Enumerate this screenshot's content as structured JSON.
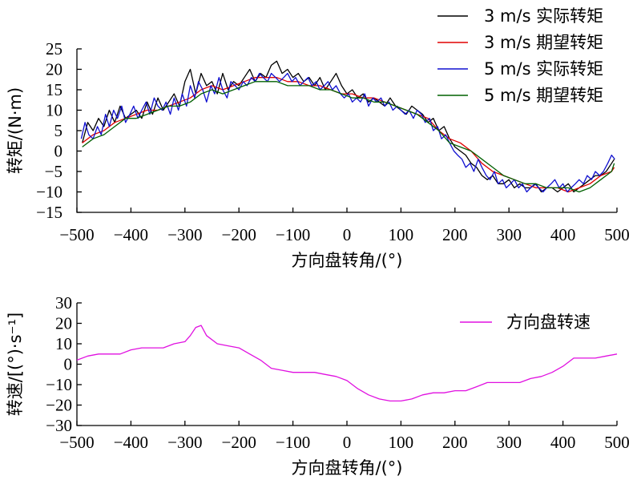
{
  "chart_data": [
    {
      "type": "line",
      "xlabel": "方向盘转角/(°)",
      "ylabel": "转矩/(N·m)",
      "xlim": [
        -500,
        500
      ],
      "ylim": [
        -15,
        25
      ],
      "xticks": [
        -500,
        -400,
        -300,
        -200,
        -100,
        0,
        100,
        200,
        300,
        400,
        500
      ],
      "yticks": [
        -15,
        -10,
        -5,
        0,
        5,
        10,
        15,
        20,
        25
      ],
      "xtick_labels": [
        "−500",
        "−400",
        "−300",
        "−200",
        "−100",
        "0",
        "100",
        "200",
        "300",
        "400",
        "500"
      ],
      "ytick_labels": [
        "−15",
        "−10",
        "−5",
        "0",
        "5",
        "10",
        "15",
        "20",
        "25"
      ],
      "legend": "top-right",
      "series": [
        {
          "name": "3 m/s 实际转矩",
          "color": "#000000",
          "x": [
            -490,
            -480,
            -470,
            -460,
            -450,
            -440,
            -430,
            -420,
            -410,
            -400,
            -390,
            -380,
            -370,
            -360,
            -350,
            -340,
            -330,
            -320,
            -310,
            -300,
            -290,
            -280,
            -270,
            -260,
            -250,
            -240,
            -230,
            -220,
            -210,
            -200,
            -190,
            -180,
            -170,
            -160,
            -150,
            -140,
            -130,
            -120,
            -110,
            -100,
            -90,
            -80,
            -70,
            -60,
            -50,
            -40,
            -30,
            -20,
            -10,
            0,
            10,
            20,
            30,
            40,
            50,
            60,
            70,
            80,
            90,
            100,
            110,
            120,
            130,
            140,
            150,
            160,
            170,
            180,
            190,
            200,
            210,
            220,
            230,
            240,
            250,
            260,
            270,
            280,
            290,
            300,
            310,
            320,
            330,
            340,
            350,
            360,
            370,
            380,
            390,
            400,
            410,
            420,
            430,
            440,
            450,
            460,
            470,
            480,
            490,
            495
          ],
          "values": [
            2,
            7,
            5,
            8,
            6,
            10,
            7,
            11,
            8,
            9,
            10,
            8,
            12,
            9,
            13,
            10,
            12,
            14,
            11,
            17,
            20,
            14,
            19,
            16,
            17,
            14,
            19,
            15,
            17,
            16,
            18,
            20,
            17,
            19,
            18,
            21,
            22,
            19,
            20,
            18,
            19,
            17,
            18,
            16,
            18,
            15,
            17,
            19,
            16,
            14,
            15,
            13,
            14,
            12,
            13,
            12,
            11,
            13,
            11,
            10,
            9,
            11,
            10,
            9,
            7,
            8,
            5,
            6,
            3,
            1,
            0,
            -1,
            -3,
            -4,
            -6,
            -7,
            -6,
            -8,
            -8,
            -7,
            -9,
            -8,
            -9,
            -9,
            -8,
            -10,
            -9,
            -9,
            -10,
            -9,
            -8,
            -10,
            -9,
            -8,
            -7,
            -6,
            -6,
            -5,
            -3,
            -2
          ]
        },
        {
          "name": "3 m/s 期望转矩",
          "color": "#e00000",
          "x": [
            -490,
            -470,
            -450,
            -430,
            -410,
            -390,
            -370,
            -350,
            -330,
            -310,
            -290,
            -270,
            -250,
            -230,
            -210,
            -190,
            -170,
            -150,
            -130,
            -110,
            -90,
            -70,
            -50,
            -30,
            -10,
            10,
            30,
            50,
            70,
            90,
            110,
            130,
            150,
            170,
            190,
            210,
            230,
            250,
            270,
            290,
            310,
            330,
            350,
            370,
            390,
            410,
            430,
            450,
            470,
            490,
            495
          ],
          "values": [
            2,
            4,
            5,
            7,
            8,
            9,
            10,
            10,
            11,
            12,
            13,
            15,
            16,
            15,
            16,
            17,
            18,
            18,
            18,
            17,
            17,
            16,
            16,
            15,
            14,
            14,
            13,
            13,
            12,
            11,
            10,
            9,
            8,
            5,
            3,
            2,
            0,
            -3,
            -5,
            -6,
            -7,
            -8,
            -9,
            -9,
            -9,
            -10,
            -9,
            -8,
            -6,
            -5,
            -4
          ]
        },
        {
          "name": "5 m/s 实际转矩",
          "color": "#1010d0",
          "x": [
            -492,
            -485,
            -478,
            -470,
            -462,
            -455,
            -447,
            -440,
            -432,
            -425,
            -417,
            -410,
            -402,
            -395,
            -387,
            -380,
            -372,
            -365,
            -357,
            -350,
            -342,
            -335,
            -327,
            -320,
            -312,
            -305,
            -297,
            -290,
            -282,
            -275,
            -267,
            -260,
            -252,
            -245,
            -237,
            -230,
            -222,
            -215,
            -207,
            -200,
            -192,
            -185,
            -177,
            -170,
            -162,
            -155,
            -147,
            -140,
            -132,
            -125,
            -117,
            -110,
            -102,
            -95,
            -87,
            -80,
            -72,
            -65,
            -57,
            -50,
            -42,
            -35,
            -27,
            -20,
            -12,
            -5,
            3,
            10,
            18,
            25,
            33,
            40,
            48,
            55,
            63,
            70,
            78,
            85,
            93,
            100,
            108,
            115,
            123,
            130,
            138,
            145,
            153,
            160,
            168,
            175,
            183,
            190,
            198,
            205,
            213,
            220,
            228,
            235,
            243,
            250,
            258,
            265,
            273,
            280,
            288,
            295,
            303,
            310,
            318,
            325,
            333,
            340,
            348,
            355,
            363,
            370,
            378,
            385,
            393,
            400,
            408,
            415,
            423,
            430,
            438,
            445,
            453,
            460,
            468,
            475,
            483,
            490,
            496
          ],
          "values": [
            3,
            7,
            4,
            3,
            6,
            4,
            9,
            6,
            10,
            8,
            11,
            7,
            9,
            11,
            8,
            10,
            12,
            9,
            13,
            11,
            10,
            12,
            9,
            13,
            10,
            14,
            11,
            16,
            13,
            17,
            15,
            12,
            16,
            14,
            18,
            15,
            13,
            17,
            16,
            15,
            17,
            16,
            18,
            17,
            19,
            18,
            17,
            19,
            18,
            17,
            18,
            19,
            17,
            18,
            16,
            17,
            18,
            16,
            17,
            15,
            16,
            17,
            15,
            16,
            14,
            13,
            14,
            12,
            13,
            12,
            14,
            11,
            13,
            12,
            13,
            11,
            12,
            10,
            11,
            10,
            9,
            10,
            8,
            10,
            9,
            7,
            8,
            5,
            6,
            3,
            4,
            2,
            0,
            -1,
            -2,
            -4,
            -3,
            -5,
            -2,
            -4,
            -6,
            -7,
            -5,
            -8,
            -7,
            -9,
            -8,
            -7,
            -9,
            -8,
            -10,
            -9,
            -8,
            -9,
            -10,
            -9,
            -8,
            -7,
            -9,
            -8,
            -10,
            -9,
            -8,
            -7,
            -8,
            -6,
            -7,
            -5,
            -6,
            -5,
            -3,
            -1,
            -2
          ]
        },
        {
          "name": "5 m/s 期望转矩",
          "color": "#006000",
          "x": [
            -490,
            -470,
            -450,
            -430,
            -410,
            -390,
            -370,
            -350,
            -330,
            -310,
            -290,
            -270,
            -250,
            -230,
            -210,
            -190,
            -170,
            -150,
            -130,
            -110,
            -90,
            -70,
            -50,
            -30,
            -10,
            10,
            30,
            50,
            70,
            90,
            110,
            130,
            150,
            170,
            190,
            210,
            230,
            250,
            270,
            290,
            310,
            330,
            350,
            370,
            390,
            410,
            430,
            450,
            470,
            490,
            495
          ],
          "values": [
            1,
            3,
            4,
            6,
            8,
            8,
            9,
            10,
            11,
            11,
            12,
            14,
            15,
            14,
            15,
            16,
            17,
            17,
            17,
            16,
            16,
            16,
            15,
            15,
            14,
            13,
            13,
            12,
            12,
            11,
            10,
            9,
            7,
            5,
            2,
            1,
            0,
            -2,
            -4,
            -6,
            -7,
            -8,
            -8,
            -9,
            -9,
            -9,
            -10,
            -9,
            -7,
            -5,
            -3
          ]
        }
      ]
    },
    {
      "type": "line",
      "xlabel": "方向盘转角/(°)",
      "ylabel": "转速/[(°)·s⁻¹]",
      "xlim": [
        -500,
        500
      ],
      "ylim": [
        -30,
        30
      ],
      "xticks": [
        -500,
        -400,
        -300,
        -200,
        -100,
        0,
        100,
        200,
        300,
        400,
        500
      ],
      "yticks": [
        -30,
        -20,
        -10,
        0,
        10,
        20,
        30
      ],
      "xtick_labels": [
        "−500",
        "−400",
        "−300",
        "−200",
        "−100",
        "0",
        "100",
        "200",
        "300",
        "400",
        "500"
      ],
      "ytick_labels": [
        "−30",
        "−20",
        "−10",
        "0",
        "10",
        "20",
        "30"
      ],
      "legend": "top-right",
      "series": [
        {
          "name": "方向盘转速",
          "color": "#e010e0",
          "x": [
            -500,
            -480,
            -460,
            -440,
            -420,
            -400,
            -380,
            -360,
            -340,
            -320,
            -300,
            -290,
            -280,
            -270,
            -260,
            -240,
            -220,
            -200,
            -180,
            -160,
            -140,
            -120,
            -100,
            -80,
            -60,
            -40,
            -20,
            0,
            20,
            40,
            60,
            80,
            100,
            120,
            140,
            160,
            180,
            200,
            220,
            240,
            260,
            280,
            300,
            320,
            340,
            360,
            380,
            400,
            420,
            440,
            460,
            480,
            500
          ],
          "values": [
            2,
            4,
            5,
            5,
            5,
            7,
            8,
            8,
            8,
            10,
            11,
            14,
            18,
            19,
            14,
            10,
            9,
            8,
            5,
            2,
            -2,
            -3,
            -4,
            -4,
            -4,
            -5,
            -6,
            -8,
            -12,
            -15,
            -17,
            -18,
            -18,
            -17,
            -15,
            -14,
            -14,
            -13,
            -13,
            -11,
            -9,
            -9,
            -9,
            -9,
            -7,
            -6,
            -4,
            -1,
            3,
            3,
            3,
            4,
            5
          ]
        }
      ]
    }
  ]
}
